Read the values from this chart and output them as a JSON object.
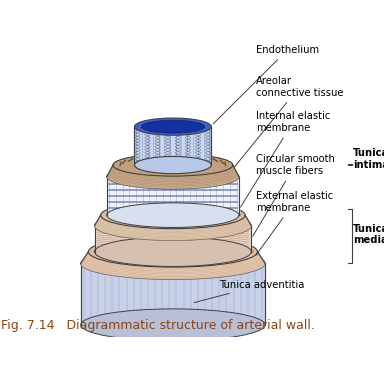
{
  "title": "Fig. 7.14   Diagrammatic structure of arterial wall.",
  "title_color": "#8B4513",
  "title_fontsize": 9,
  "background_color": "#ffffff",
  "labels": {
    "endothelium": "Endothelium",
    "areolar": "Areolar\nconnective tissue",
    "internal_elastic": "Internal elastic\nmembrane",
    "circular_smooth": "Circular smooth\nmuscle fibers",
    "external_elastic": "External elastic\nmembrane",
    "tunica_adventitia": "Tunica adventitia",
    "tunica_intima": "Tunica\nintima",
    "tunica_media": "Tunica\nmedia"
  },
  "colors": {
    "outline": "#404040",
    "label_color": "#000000"
  }
}
